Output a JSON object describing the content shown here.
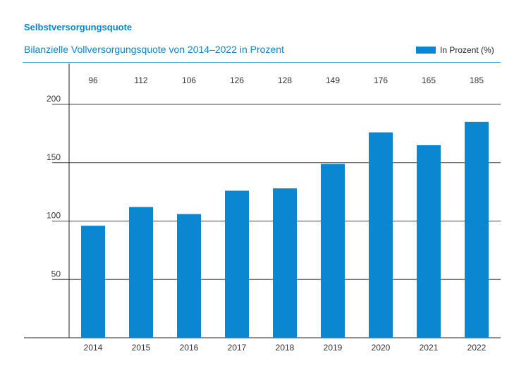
{
  "heading": "Selbstversorgungsquote",
  "chart_data": {
    "type": "bar",
    "title": "Bilanzielle Vollversorgungsquote von 2014–2022 in Prozent",
    "categories": [
      "2014",
      "2015",
      "2016",
      "2017",
      "2018",
      "2019",
      "2020",
      "2021",
      "2022"
    ],
    "series": [
      {
        "name": "In Prozent (%)",
        "values": [
          96,
          112,
          106,
          126,
          128,
          149,
          176,
          165,
          185
        ]
      }
    ],
    "value_labels": [
      "96",
      "112",
      "106",
      "126",
      "128",
      "149",
      "176",
      "165",
      "185"
    ],
    "ylim": [
      0,
      200
    ],
    "yticks": [
      "50",
      "100",
      "150",
      "200"
    ],
    "grid": true,
    "legend": "top-right",
    "bar_color": "#0a87d0"
  }
}
